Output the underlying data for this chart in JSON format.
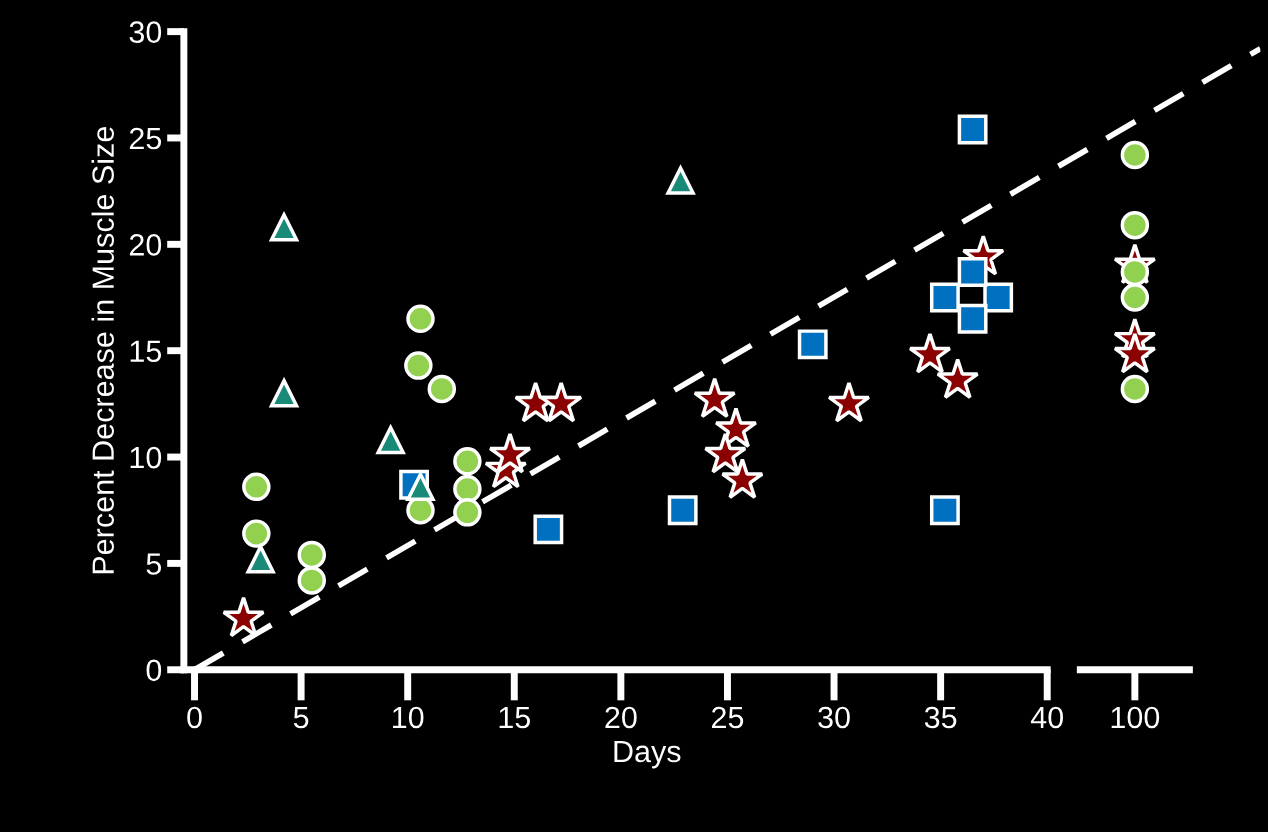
{
  "chart_data": [
    {
      "type": "scatter",
      "xlabel": "Days",
      "ylabel": "Percent Decrease in Muscle Size",
      "xlim": [
        -0.5,
        50
      ],
      "ylim": [
        0,
        30
      ],
      "xticks": [
        0,
        5,
        10,
        15,
        20,
        25,
        30,
        35,
        40
      ],
      "yticks": [
        0,
        5,
        10,
        15,
        20,
        25,
        30
      ],
      "grid": false,
      "legend": false,
      "series": [
        {
          "type": "line",
          "color": "#ffffff",
          "marker": "none",
          "line_style": "dashed",
          "x": [
            0,
            50
          ],
          "values": [
            0,
            29.2
          ]
        },
        {
          "color": "#1a8a78",
          "marker": "triangle",
          "x": [
            4.2,
            4.2,
            3.1,
            9.2,
            10.6,
            22.8
          ],
          "values": [
            20.8,
            13.0,
            5.2,
            10.8,
            8.6,
            23.0
          ]
        },
        {
          "color": "#92d050",
          "marker": "circle",
          "x": [
            2.9,
            2.9,
            5.5,
            5.5,
            10.6,
            10.5,
            11.6,
            10.6,
            12.8,
            12.8,
            12.8
          ],
          "values": [
            8.6,
            6.4,
            5.4,
            4.2,
            16.5,
            14.3,
            13.2,
            7.5,
            9.8,
            8.5,
            7.4
          ]
        },
        {
          "color": "#0070c0",
          "marker": "square",
          "x": [
            10.3,
            16.6,
            22.9,
            29.0,
            36.5,
            35.2,
            37.7,
            36.5,
            36.5,
            35.2
          ],
          "values": [
            8.7,
            6.6,
            7.5,
            15.3,
            25.4,
            17.5,
            17.5,
            18.7,
            16.5,
            7.5
          ]
        },
        {
          "color": "#8b0000",
          "marker": "star",
          "x": [
            2.3,
            14.6,
            14.8,
            16.0,
            17.2,
            24.4,
            25.4,
            24.9,
            25.7,
            30.7,
            34.5,
            35.8,
            37.0
          ],
          "values": [
            2.4,
            9.4,
            10.1,
            12.5,
            12.5,
            12.7,
            11.3,
            10.1,
            8.9,
            12.5,
            14.8,
            13.6,
            19.4
          ]
        }
      ]
    },
    {
      "type": "scatter",
      "categories": [
        "100"
      ],
      "ylim": [
        0,
        30
      ],
      "tick_labels": "x",
      "grid": false,
      "legend": false,
      "series": [
        {
          "color": "#92d050",
          "marker": "circle",
          "x": [
            "100",
            "100",
            "100",
            "100",
            "100"
          ],
          "values": [
            24.2,
            20.9,
            18.7,
            17.5,
            13.2
          ]
        },
        {
          "color": "#8b0000",
          "marker": "star",
          "x": [
            "100",
            "100",
            "100"
          ],
          "values": [
            19.0,
            15.5,
            14.8
          ]
        }
      ]
    }
  ]
}
